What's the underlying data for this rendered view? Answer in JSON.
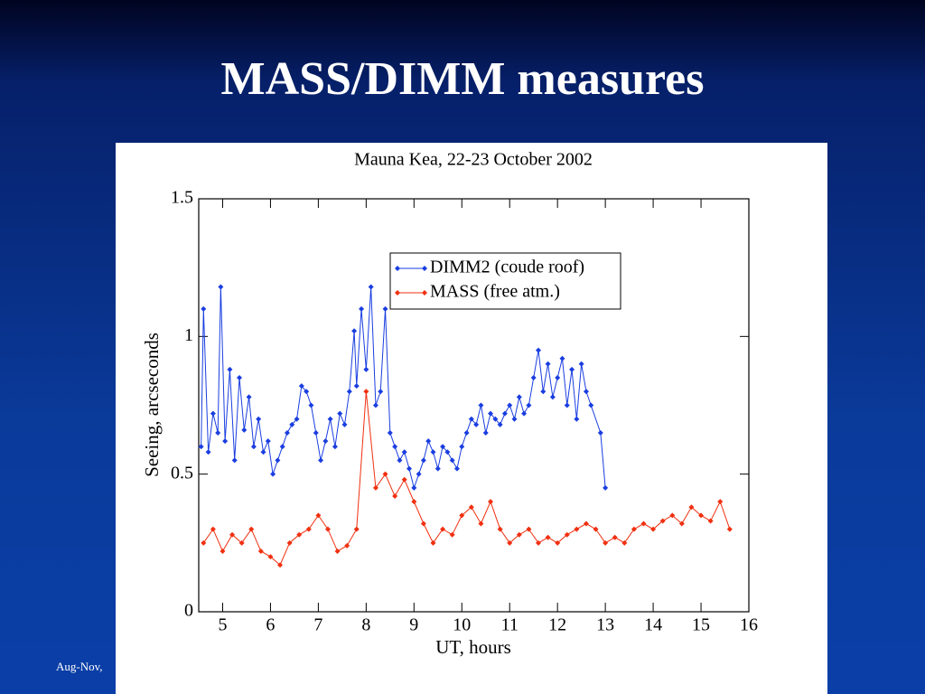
{
  "slide_title": "MASS/DIMM measures",
  "footer": "Aug-Nov,",
  "chart_data": {
    "type": "line",
    "title": "Mauna Kea, 22-23 October 2002",
    "x_label": "UT, hours",
    "y_label": "Seeing, arcseconds",
    "xlim": [
      4.5,
      16
    ],
    "xticks": [
      5,
      6,
      7,
      8,
      9,
      10,
      11,
      12,
      13,
      14,
      15,
      16
    ],
    "ylim": [
      0,
      1.5
    ],
    "yticks": [
      0,
      0.5,
      1,
      1.5
    ],
    "legend": "upper center",
    "series": [
      {
        "name": "DIMM2 (coude roof)",
        "color": "#1a3ee0",
        "x": [
          4.55,
          4.6,
          4.7,
          4.8,
          4.9,
          4.96,
          5.05,
          5.15,
          5.25,
          5.35,
          5.45,
          5.55,
          5.65,
          5.75,
          5.85,
          5.95,
          6.05,
          6.15,
          6.25,
          6.35,
          6.45,
          6.55,
          6.65,
          6.75,
          6.85,
          6.95,
          7.05,
          7.15,
          7.25,
          7.35,
          7.45,
          7.55,
          7.65,
          7.75,
          7.8,
          7.9,
          8.0,
          8.1,
          8.2,
          8.3,
          8.4,
          8.5,
          8.6,
          8.7,
          8.8,
          8.9,
          9.0,
          9.1,
          9.2,
          9.3,
          9.4,
          9.5,
          9.6,
          9.7,
          9.8,
          9.9,
          10.0,
          10.1,
          10.2,
          10.3,
          10.4,
          10.5,
          10.6,
          10.7,
          10.8,
          10.9,
          11.0,
          11.1,
          11.2,
          11.3,
          11.4,
          11.5,
          11.6,
          11.7,
          11.8,
          11.9,
          12.0,
          12.1,
          12.2,
          12.3,
          12.4,
          12.5,
          12.6,
          12.7,
          12.9,
          13.0
        ],
        "values": [
          0.6,
          1.1,
          0.58,
          0.72,
          0.65,
          1.18,
          0.62,
          0.88,
          0.55,
          0.85,
          0.66,
          0.78,
          0.6,
          0.7,
          0.58,
          0.62,
          0.5,
          0.55,
          0.6,
          0.65,
          0.68,
          0.7,
          0.82,
          0.8,
          0.75,
          0.65,
          0.55,
          0.62,
          0.7,
          0.6,
          0.72,
          0.68,
          0.8,
          1.02,
          0.82,
          1.1,
          0.88,
          1.18,
          0.75,
          0.8,
          1.1,
          0.65,
          0.6,
          0.55,
          0.58,
          0.52,
          0.45,
          0.5,
          0.55,
          0.62,
          0.58,
          0.52,
          0.6,
          0.58,
          0.55,
          0.52,
          0.6,
          0.65,
          0.7,
          0.68,
          0.75,
          0.65,
          0.72,
          0.7,
          0.68,
          0.72,
          0.75,
          0.7,
          0.78,
          0.72,
          0.75,
          0.85,
          0.95,
          0.8,
          0.9,
          0.78,
          0.85,
          0.92,
          0.75,
          0.88,
          0.7,
          0.9,
          0.8,
          0.75,
          0.65,
          0.45
        ]
      },
      {
        "name": "MASS (free atm.)",
        "color": "#f03010",
        "x": [
          4.6,
          4.8,
          5.0,
          5.2,
          5.4,
          5.6,
          5.8,
          6.0,
          6.2,
          6.4,
          6.6,
          6.8,
          7.0,
          7.2,
          7.4,
          7.6,
          7.8,
          8.0,
          8.2,
          8.4,
          8.6,
          8.8,
          9.0,
          9.2,
          9.4,
          9.6,
          9.8,
          10.0,
          10.2,
          10.4,
          10.6,
          10.8,
          11.0,
          11.2,
          11.4,
          11.6,
          11.8,
          12.0,
          12.2,
          12.4,
          12.6,
          12.8,
          13.0,
          13.2,
          13.4,
          13.6,
          13.8,
          14.0,
          14.2,
          14.4,
          14.6,
          14.8,
          15.0,
          15.2,
          15.4,
          15.6
        ],
        "values": [
          0.25,
          0.3,
          0.22,
          0.28,
          0.25,
          0.3,
          0.22,
          0.2,
          0.17,
          0.25,
          0.28,
          0.3,
          0.35,
          0.3,
          0.22,
          0.24,
          0.3,
          0.8,
          0.45,
          0.5,
          0.42,
          0.48,
          0.4,
          0.32,
          0.25,
          0.3,
          0.28,
          0.35,
          0.38,
          0.32,
          0.4,
          0.3,
          0.25,
          0.28,
          0.3,
          0.25,
          0.27,
          0.25,
          0.28,
          0.3,
          0.32,
          0.3,
          0.25,
          0.27,
          0.25,
          0.3,
          0.32,
          0.3,
          0.33,
          0.35,
          0.32,
          0.38,
          0.35,
          0.33,
          0.4,
          0.3
        ]
      }
    ]
  }
}
